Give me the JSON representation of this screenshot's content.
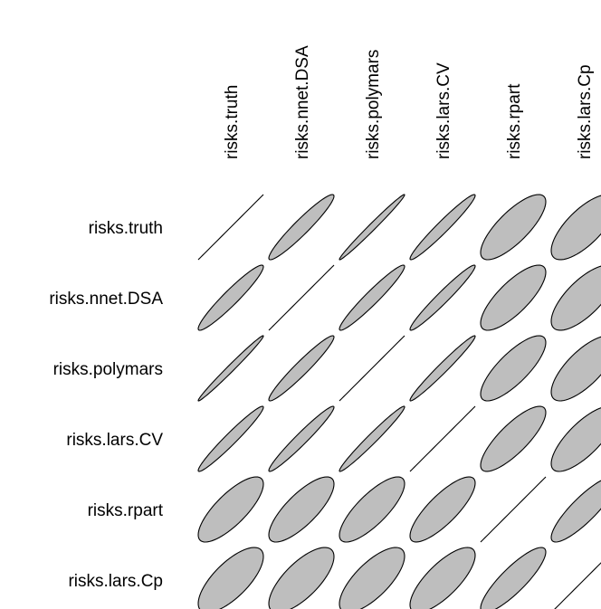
{
  "chart_data": {
    "type": "heatmap",
    "variables": [
      "risks.truth",
      "risks.nnet.DSA",
      "risks.polymars",
      "risks.lars.CV",
      "risks.rpart",
      "risks.lars.Cp"
    ],
    "correlation_matrix": [
      [
        1.0,
        0.95,
        0.99,
        0.97,
        0.78,
        0.72
      ],
      [
        0.95,
        1.0,
        0.96,
        0.97,
        0.78,
        0.72
      ],
      [
        0.99,
        0.96,
        1.0,
        0.98,
        0.79,
        0.73
      ],
      [
        0.97,
        0.97,
        0.98,
        1.0,
        0.81,
        0.76
      ],
      [
        0.78,
        0.78,
        0.79,
        0.81,
        1.0,
        0.86
      ],
      [
        0.72,
        0.72,
        0.73,
        0.76,
        0.86,
        1.0
      ]
    ],
    "fill_color": "#bebebe",
    "stroke_color": "#000000"
  }
}
